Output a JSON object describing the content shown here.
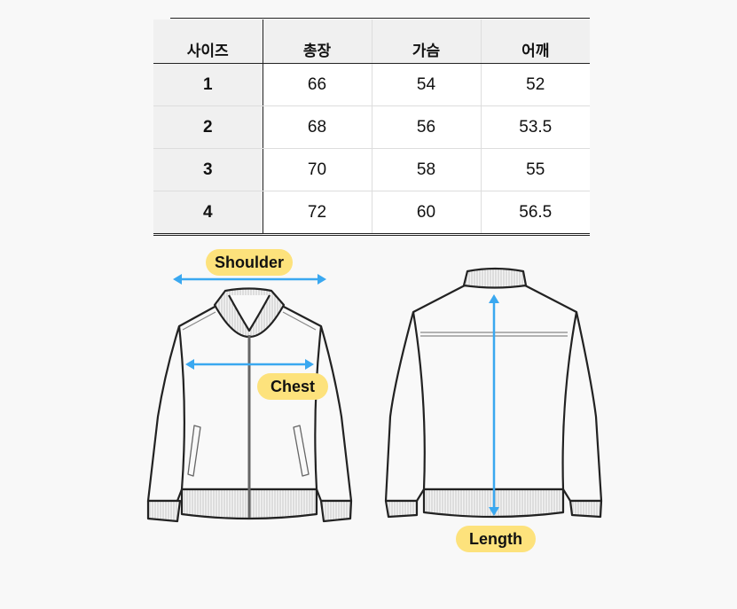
{
  "size_table": {
    "headers": [
      "사이즈",
      "총장",
      "가슴",
      "어깨"
    ],
    "rows": [
      [
        "1",
        "66",
        "54",
        "52"
      ],
      [
        "2",
        "68",
        "56",
        "53.5"
      ],
      [
        "3",
        "70",
        "58",
        "55"
      ],
      [
        "4",
        "72",
        "60",
        "56.5"
      ]
    ]
  },
  "diagram": {
    "shoulder_label": "Shoulder",
    "chest_label": "Chest",
    "length_label": "Length",
    "arrow_color": "#3aa8f0",
    "label_color": "#fde27c"
  }
}
